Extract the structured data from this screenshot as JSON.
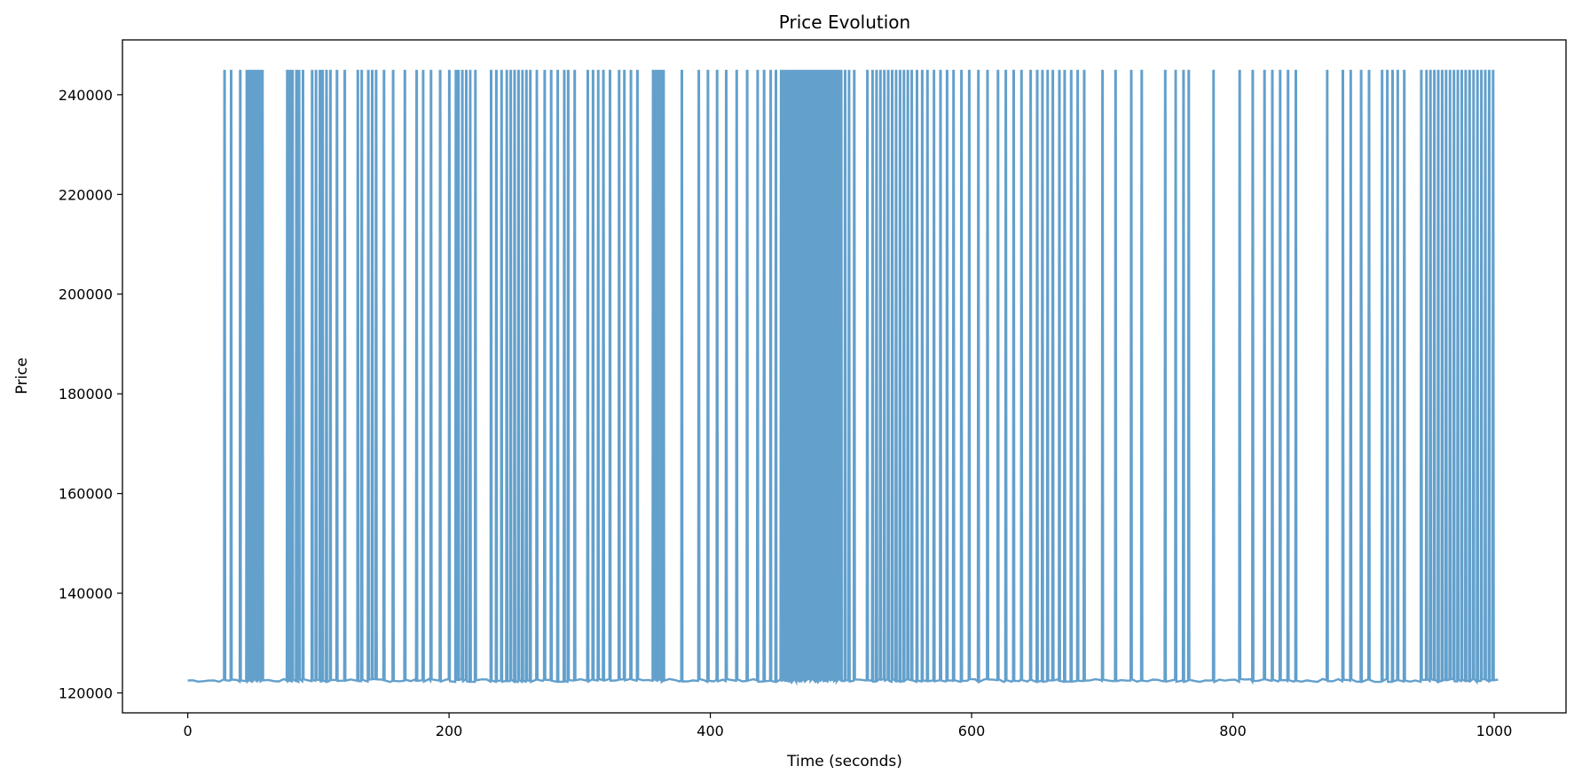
{
  "chart_data": {
    "type": "line",
    "title": "Price Evolution",
    "xlabel": "Time (seconds)",
    "ylabel": "Price",
    "xlim": [
      -50,
      1055
    ],
    "ylim": [
      116000,
      251000
    ],
    "xticks": [
      0,
      200,
      400,
      600,
      800,
      1000
    ],
    "yticks": [
      120000,
      140000,
      160000,
      180000,
      200000,
      220000,
      240000
    ],
    "grid": false,
    "legend": "none",
    "color": "#5b9bc9",
    "series": [
      {
        "x_range": [
          0,
          1003
        ],
        "baseline": 122500,
        "peak": 244800,
        "spike_times": [
          28,
          33,
          40,
          45,
          47,
          49,
          51,
          53,
          55,
          57,
          76,
          78,
          80,
          83,
          85,
          88,
          95,
          98,
          101,
          103,
          106,
          109,
          114,
          120,
          130,
          133,
          138,
          141,
          144,
          150,
          157,
          166,
          175,
          180,
          186,
          193,
          200,
          205,
          207,
          210,
          213,
          216,
          220,
          232,
          236,
          240,
          244,
          247,
          250,
          253,
          256,
          259,
          262,
          267,
          273,
          278,
          283,
          288,
          291,
          296,
          306,
          310,
          314,
          318,
          323,
          330,
          334,
          339,
          344,
          356,
          358,
          360,
          362,
          364,
          378,
          391,
          398,
          405,
          412,
          420,
          428,
          436,
          441,
          446,
          450,
          454,
          456,
          458,
          460,
          462,
          464,
          466,
          468,
          470,
          472,
          474,
          476,
          478,
          480,
          482,
          484,
          486,
          488,
          490,
          492,
          494,
          496,
          498,
          500,
          503,
          506,
          510,
          520,
          524,
          527,
          530,
          533,
          536,
          539,
          542,
          545,
          548,
          551,
          554,
          558,
          562,
          566,
          571,
          576,
          581,
          586,
          592,
          598,
          605,
          612,
          620,
          626,
          632,
          638,
          645,
          650,
          654,
          658,
          662,
          667,
          671,
          676,
          681,
          686,
          700,
          710,
          722,
          730,
          748,
          756,
          762,
          766,
          785,
          805,
          815,
          824,
          830,
          836,
          842,
          848,
          872,
          884,
          890,
          898,
          904,
          914,
          918,
          922,
          926,
          931,
          944,
          948,
          951,
          954,
          957,
          960,
          963,
          966,
          969,
          972,
          975,
          978,
          981,
          984,
          987,
          990,
          993,
          996,
          999
        ]
      }
    ]
  }
}
